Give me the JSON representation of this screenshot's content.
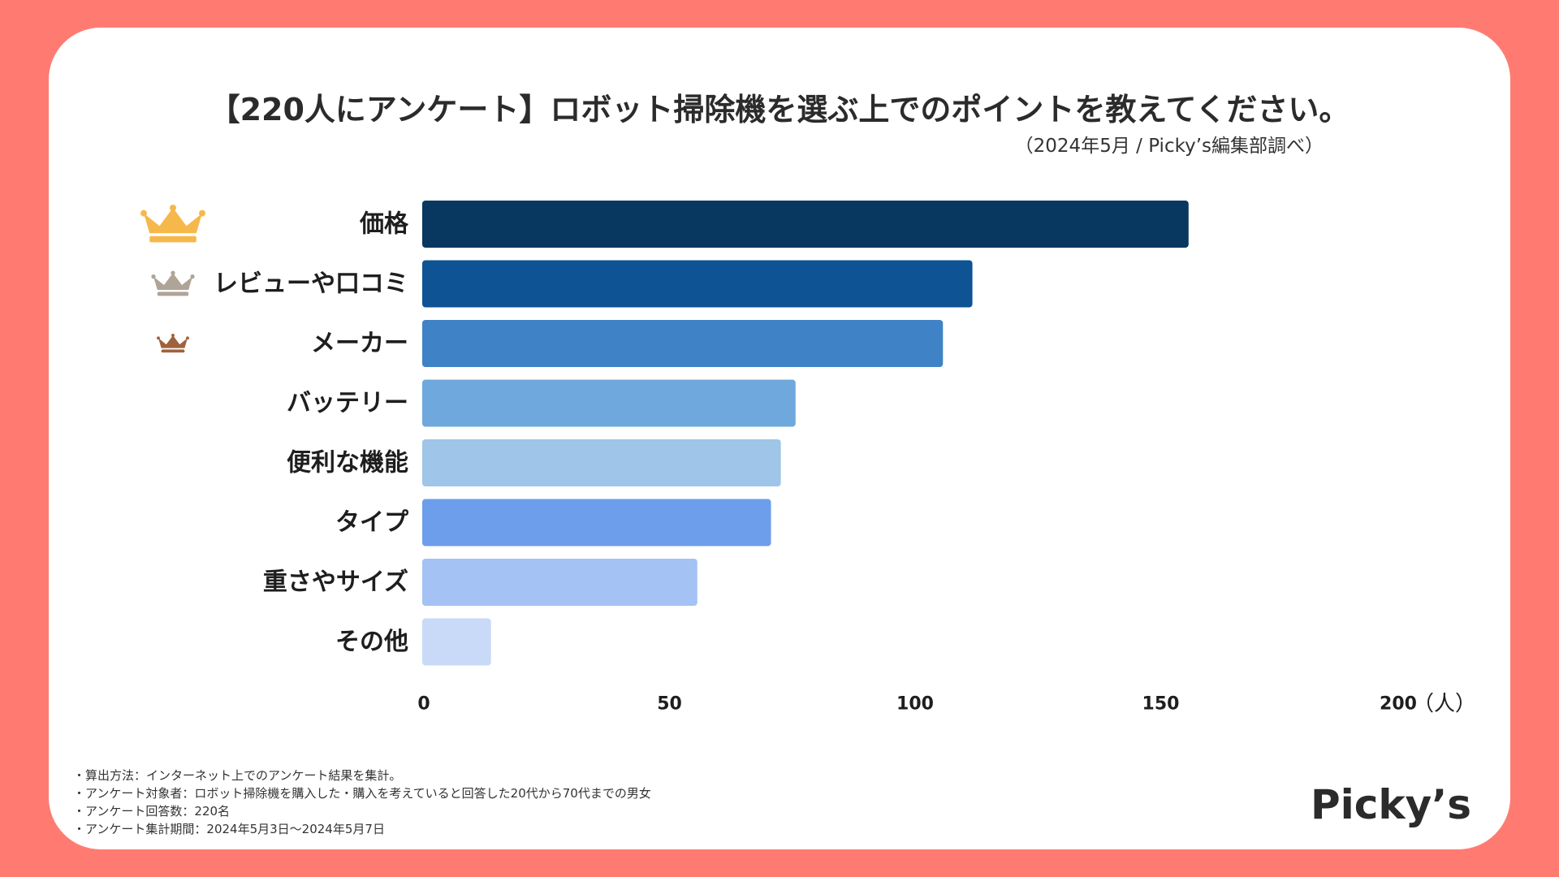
{
  "page": {
    "title": "【220人にアンケート】ロボット掃除機を選ぶ上でのポイントを教えてください。",
    "subtitle": "（2024年5月 / Picky’s編集部調べ）",
    "logo": "Picky’s"
  },
  "chart_data": {
    "type": "bar",
    "orientation": "horizontal",
    "categories": [
      "価格",
      "レビューや口コミ",
      "メーカー",
      "バッテリー",
      "便利な機能",
      "タイプ",
      "重さやサイズ",
      "その他"
    ],
    "values": [
      156,
      112,
      106,
      76,
      73,
      71,
      56,
      14
    ],
    "colors": [
      "#08375f",
      "#0e5394",
      "#3f83c6",
      "#6fa8dc",
      "#9fc5e8",
      "#6d9eeb",
      "#a4c2f4",
      "#c9daf8"
    ],
    "rank_icons": [
      {
        "rank": 1,
        "name": "gold-crown-icon",
        "color": "#f6b84a"
      },
      {
        "rank": 2,
        "name": "silver-crown-icon",
        "color": "#b0a498"
      },
      {
        "rank": 3,
        "name": "bronze-crown-icon",
        "color": "#a0623c"
      }
    ],
    "x_ticks": [
      "0",
      "50",
      "100",
      "150",
      "200"
    ],
    "xlim": [
      0,
      200
    ],
    "x_unit": "（人）",
    "grid": false
  },
  "notes": [
    "算出方法：インターネット上でのアンケート結果を集計。",
    "アンケート対象者：ロボット掃除機を購入した・購入を考えていると回答した20代から70代までの男女",
    "アンケート回答数：220名",
    "アンケート集計期間：2024年5月3日〜2024年5月7日"
  ]
}
